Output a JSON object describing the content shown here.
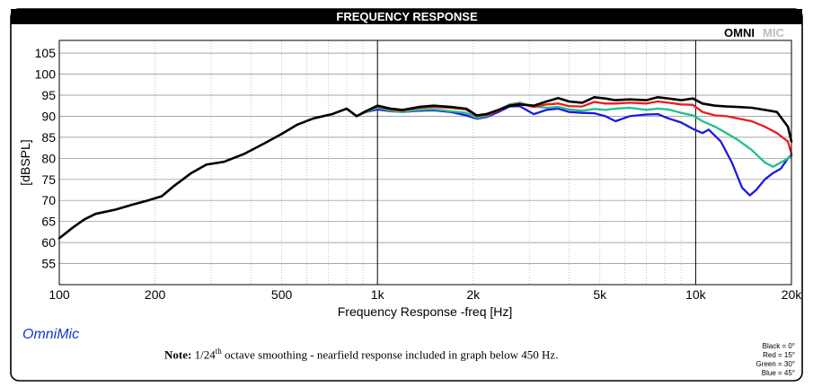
{
  "header": {
    "title": "FREQUENCY RESPONSE",
    "logo": "OMNIMIC",
    "logo_bold": "OMNI",
    "logo_light": "MIC"
  },
  "brand_text": "OmniMic",
  "note": {
    "prefix": "Note:",
    "text_a": "1/24",
    "sup": "th",
    "text_b": "octave smoothing - nearfield response included in graph below 450 Hz."
  },
  "legend": [
    "Black = 0°",
    "Red = 15°",
    "Green = 30°",
    "Blue = 45°"
  ],
  "colors": {
    "black": "#000000",
    "red": "#ee1c1c",
    "green": "#1fbf8a",
    "blue": "#1a1ae0",
    "title_bar": "#000000"
  },
  "chart_data": {
    "type": "line",
    "xscale": "log",
    "xlabel": "Frequency Response -freq [Hz]",
    "ylabel": "[dBSPL]",
    "xlim": [
      100,
      20000
    ],
    "ylim": [
      50,
      108
    ],
    "x_ticks": [
      100,
      200,
      500,
      1000,
      2000,
      5000,
      10000,
      20000
    ],
    "x_tick_labels": [
      "100",
      "200",
      "500",
      "1k",
      "2k",
      "5k",
      "10k",
      "20k"
    ],
    "y_ticks": [
      55,
      60,
      65,
      70,
      75,
      80,
      85,
      90,
      95,
      100,
      105
    ],
    "y_tick_labels": [
      "55",
      "60",
      "65",
      "70",
      "75",
      "80",
      "85",
      "90",
      "95",
      "100",
      "105"
    ],
    "grid": true,
    "series": [
      {
        "name": "Black = 0°",
        "color": "#000000",
        "points": [
          [
            100,
            61
          ],
          [
            110,
            63.5
          ],
          [
            120,
            65.5
          ],
          [
            130,
            66.8
          ],
          [
            150,
            67.8
          ],
          [
            170,
            69
          ],
          [
            190,
            70
          ],
          [
            210,
            71
          ],
          [
            230,
            73.5
          ],
          [
            260,
            76.5
          ],
          [
            290,
            78.5
          ],
          [
            330,
            79.2
          ],
          [
            380,
            81
          ],
          [
            440,
            83.5
          ],
          [
            500,
            85.8
          ],
          [
            560,
            88
          ],
          [
            630,
            89.5
          ],
          [
            720,
            90.5
          ],
          [
            800,
            91.8
          ],
          [
            860,
            90
          ],
          [
            920,
            91.2
          ],
          [
            1000,
            92.5
          ],
          [
            1100,
            91.8
          ],
          [
            1200,
            91.5
          ],
          [
            1350,
            92.2
          ],
          [
            1500,
            92.5
          ],
          [
            1700,
            92.2
          ],
          [
            1900,
            91.8
          ],
          [
            2050,
            90.2
          ],
          [
            2200,
            90.5
          ],
          [
            2400,
            91.5
          ],
          [
            2600,
            92.5
          ],
          [
            2800,
            92.8
          ],
          [
            3100,
            92.5
          ],
          [
            3400,
            93.5
          ],
          [
            3700,
            94.3
          ],
          [
            4000,
            93.5
          ],
          [
            4400,
            93.2
          ],
          [
            4800,
            94.5
          ],
          [
            5200,
            94.2
          ],
          [
            5600,
            93.8
          ],
          [
            6200,
            94
          ],
          [
            7000,
            93.8
          ],
          [
            7600,
            94.5
          ],
          [
            8200,
            94.2
          ],
          [
            9000,
            93.8
          ],
          [
            9800,
            94.2
          ],
          [
            10500,
            93
          ],
          [
            11500,
            92.5
          ],
          [
            12500,
            92.3
          ],
          [
            13500,
            92.2
          ],
          [
            15000,
            92
          ],
          [
            16500,
            91.5
          ],
          [
            18000,
            91
          ],
          [
            19500,
            87.5
          ],
          [
            20000,
            84
          ]
        ]
      },
      {
        "name": "Red = 15°",
        "color": "#ee1c1c",
        "points": [
          [
            800,
            91.8
          ],
          [
            860,
            90
          ],
          [
            920,
            91.2
          ],
          [
            1000,
            92.3
          ],
          [
            1100,
            91.6
          ],
          [
            1200,
            91.3
          ],
          [
            1350,
            92
          ],
          [
            1500,
            92.2
          ],
          [
            1700,
            92
          ],
          [
            1900,
            91.6
          ],
          [
            2050,
            90
          ],
          [
            2200,
            90.3
          ],
          [
            2400,
            91.3
          ],
          [
            2600,
            92.6
          ],
          [
            2800,
            93
          ],
          [
            3100,
            92.2
          ],
          [
            3400,
            92.8
          ],
          [
            3700,
            93
          ],
          [
            4000,
            92.4
          ],
          [
            4400,
            92.3
          ],
          [
            4800,
            93.4
          ],
          [
            5200,
            93
          ],
          [
            5600,
            93
          ],
          [
            6200,
            93.2
          ],
          [
            7000,
            93
          ],
          [
            7600,
            93.5
          ],
          [
            8200,
            93.2
          ],
          [
            9000,
            92.8
          ],
          [
            9800,
            92.7
          ],
          [
            10500,
            91
          ],
          [
            11500,
            90.2
          ],
          [
            12500,
            90
          ],
          [
            13500,
            89.5
          ],
          [
            15000,
            88.8
          ],
          [
            16500,
            87.5
          ],
          [
            18000,
            86
          ],
          [
            19500,
            84
          ],
          [
            20000,
            81
          ]
        ]
      },
      {
        "name": "Green = 30°",
        "color": "#1fbf8a",
        "points": [
          [
            800,
            91.8
          ],
          [
            860,
            90
          ],
          [
            920,
            91
          ],
          [
            1000,
            92
          ],
          [
            1100,
            91.3
          ],
          [
            1200,
            91
          ],
          [
            1350,
            91.5
          ],
          [
            1500,
            91.6
          ],
          [
            1700,
            91.2
          ],
          [
            1900,
            90.8
          ],
          [
            2050,
            89.6
          ],
          [
            2200,
            90
          ],
          [
            2400,
            91.5
          ],
          [
            2600,
            92.8
          ],
          [
            2800,
            93.2
          ],
          [
            3100,
            92.3
          ],
          [
            3400,
            92
          ],
          [
            3700,
            92.2
          ],
          [
            4000,
            91.6
          ],
          [
            4400,
            91.3
          ],
          [
            4800,
            91.7
          ],
          [
            5200,
            91.5
          ],
          [
            5600,
            91.8
          ],
          [
            6200,
            92
          ],
          [
            7000,
            91.5
          ],
          [
            7600,
            91.8
          ],
          [
            8200,
            91.6
          ],
          [
            9000,
            90.8
          ],
          [
            9800,
            90.2
          ],
          [
            10500,
            88.8
          ],
          [
            11500,
            87.5
          ],
          [
            12500,
            86
          ],
          [
            13500,
            84.5
          ],
          [
            15000,
            82
          ],
          [
            16500,
            79
          ],
          [
            17500,
            78
          ],
          [
            19000,
            79.5
          ],
          [
            20000,
            80.5
          ]
        ]
      },
      {
        "name": "Blue = 45°",
        "color": "#1a1ae0",
        "points": [
          [
            800,
            91.8
          ],
          [
            860,
            90
          ],
          [
            920,
            91
          ],
          [
            1000,
            91.6
          ],
          [
            1100,
            91.2
          ],
          [
            1200,
            91
          ],
          [
            1350,
            91.3
          ],
          [
            1500,
            91.4
          ],
          [
            1700,
            91
          ],
          [
            1900,
            90.2
          ],
          [
            2050,
            89.4
          ],
          [
            2200,
            89.8
          ],
          [
            2400,
            91
          ],
          [
            2600,
            92.3
          ],
          [
            2800,
            92.4
          ],
          [
            3100,
            90.5
          ],
          [
            3400,
            91.5
          ],
          [
            3700,
            91.8
          ],
          [
            4000,
            91
          ],
          [
            4400,
            90.8
          ],
          [
            4800,
            90.7
          ],
          [
            5200,
            90
          ],
          [
            5600,
            88.8
          ],
          [
            6200,
            90
          ],
          [
            7000,
            90.4
          ],
          [
            7600,
            90.5
          ],
          [
            8200,
            89.5
          ],
          [
            9000,
            88.5
          ],
          [
            9800,
            87
          ],
          [
            10500,
            86
          ],
          [
            11000,
            86.8
          ],
          [
            12000,
            84
          ],
          [
            13000,
            79
          ],
          [
            14000,
            73
          ],
          [
            14800,
            71.2
          ],
          [
            15500,
            72.5
          ],
          [
            16500,
            75
          ],
          [
            17500,
            76.5
          ],
          [
            18500,
            77.5
          ],
          [
            19500,
            80
          ],
          [
            20000,
            80.8
          ]
        ]
      }
    ]
  }
}
